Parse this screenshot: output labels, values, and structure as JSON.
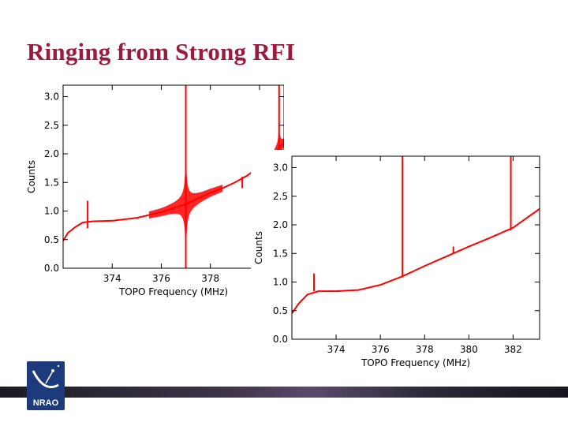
{
  "slide": {
    "title": "Ringing from Strong RFI",
    "title_color": "#9b1b3e"
  },
  "logo": {
    "text": "NRAO",
    "icon": "radio-telescope-icon",
    "color": "#1d3a7a"
  },
  "chart_data": [
    {
      "type": "line",
      "title": "",
      "xlabel": "TOPO Frequency (MHz)",
      "ylabel": "Counts",
      "xlim": [
        372,
        381
      ],
      "ylim": [
        0,
        3.2
      ],
      "xticks": [
        "374",
        "376",
        "378",
        "380"
      ],
      "yticks": [
        "0.0",
        "0.5",
        "1.0",
        "1.5",
        "2.0",
        "2.5",
        "3.0"
      ],
      "line_color": "#ff0000",
      "baseline": [
        [
          372,
          0.48
        ],
        [
          372.2,
          0.62
        ],
        [
          372.5,
          0.72
        ],
        [
          372.8,
          0.8
        ],
        [
          373.2,
          0.82
        ],
        [
          374,
          0.83
        ],
        [
          375,
          0.88
        ],
        [
          376,
          0.98
        ],
        [
          376.7,
          1.08
        ],
        [
          377,
          1.12
        ],
        [
          377.5,
          1.22
        ],
        [
          378,
          1.32
        ],
        [
          378.5,
          1.4
        ],
        [
          379,
          1.5
        ],
        [
          379.5,
          1.62
        ],
        [
          380,
          1.78
        ],
        [
          380.5,
          1.95
        ],
        [
          381,
          2.2
        ]
      ],
      "spikes": [
        {
          "x": 373.0,
          "peak": 1.18,
          "low": 0.7
        },
        {
          "x": 377.0,
          "peak": 3.2,
          "low": 0.0
        },
        {
          "x": 379.3,
          "peak": 1.6,
          "low": 1.4
        },
        {
          "x": 379.7,
          "peak": 1.9,
          "low": 1.5
        },
        {
          "x": 380.8,
          "peak": 3.2,
          "low": 1.7
        }
      ],
      "ringing": [
        {
          "x": 377.0,
          "amplitude": 0.28,
          "width": 1.5
        },
        {
          "x": 380.8,
          "amplitude": 0.12,
          "width": 0.35
        }
      ]
    },
    {
      "type": "line",
      "title": "",
      "xlabel": "TOPO Frequency (MHz)",
      "ylabel": "Counts",
      "xlim": [
        372,
        383.2
      ],
      "ylim": [
        0,
        3.2
      ],
      "xticks": [
        "374",
        "376",
        "378",
        "380",
        "382"
      ],
      "yticks": [
        "0.0",
        "0.5",
        "1.0",
        "1.5",
        "2.0",
        "2.5",
        "3.0"
      ],
      "line_color": "#ff0000",
      "baseline": [
        [
          372,
          0.45
        ],
        [
          372.3,
          0.62
        ],
        [
          372.7,
          0.78
        ],
        [
          373.2,
          0.84
        ],
        [
          374,
          0.84
        ],
        [
          375,
          0.86
        ],
        [
          376,
          0.95
        ],
        [
          377,
          1.1
        ],
        [
          378,
          1.28
        ],
        [
          379,
          1.45
        ],
        [
          380,
          1.62
        ],
        [
          381,
          1.78
        ],
        [
          382,
          1.95
        ],
        [
          383.2,
          2.28
        ]
      ],
      "spikes": [
        {
          "x": 373.0,
          "peak": 1.15,
          "low": 0.84
        },
        {
          "x": 377.0,
          "peak": 3.2,
          "low": 1.08
        },
        {
          "x": 379.3,
          "peak": 1.62,
          "low": 1.5
        },
        {
          "x": 381.9,
          "peak": 3.2,
          "low": 1.9
        }
      ],
      "ringing": []
    }
  ]
}
